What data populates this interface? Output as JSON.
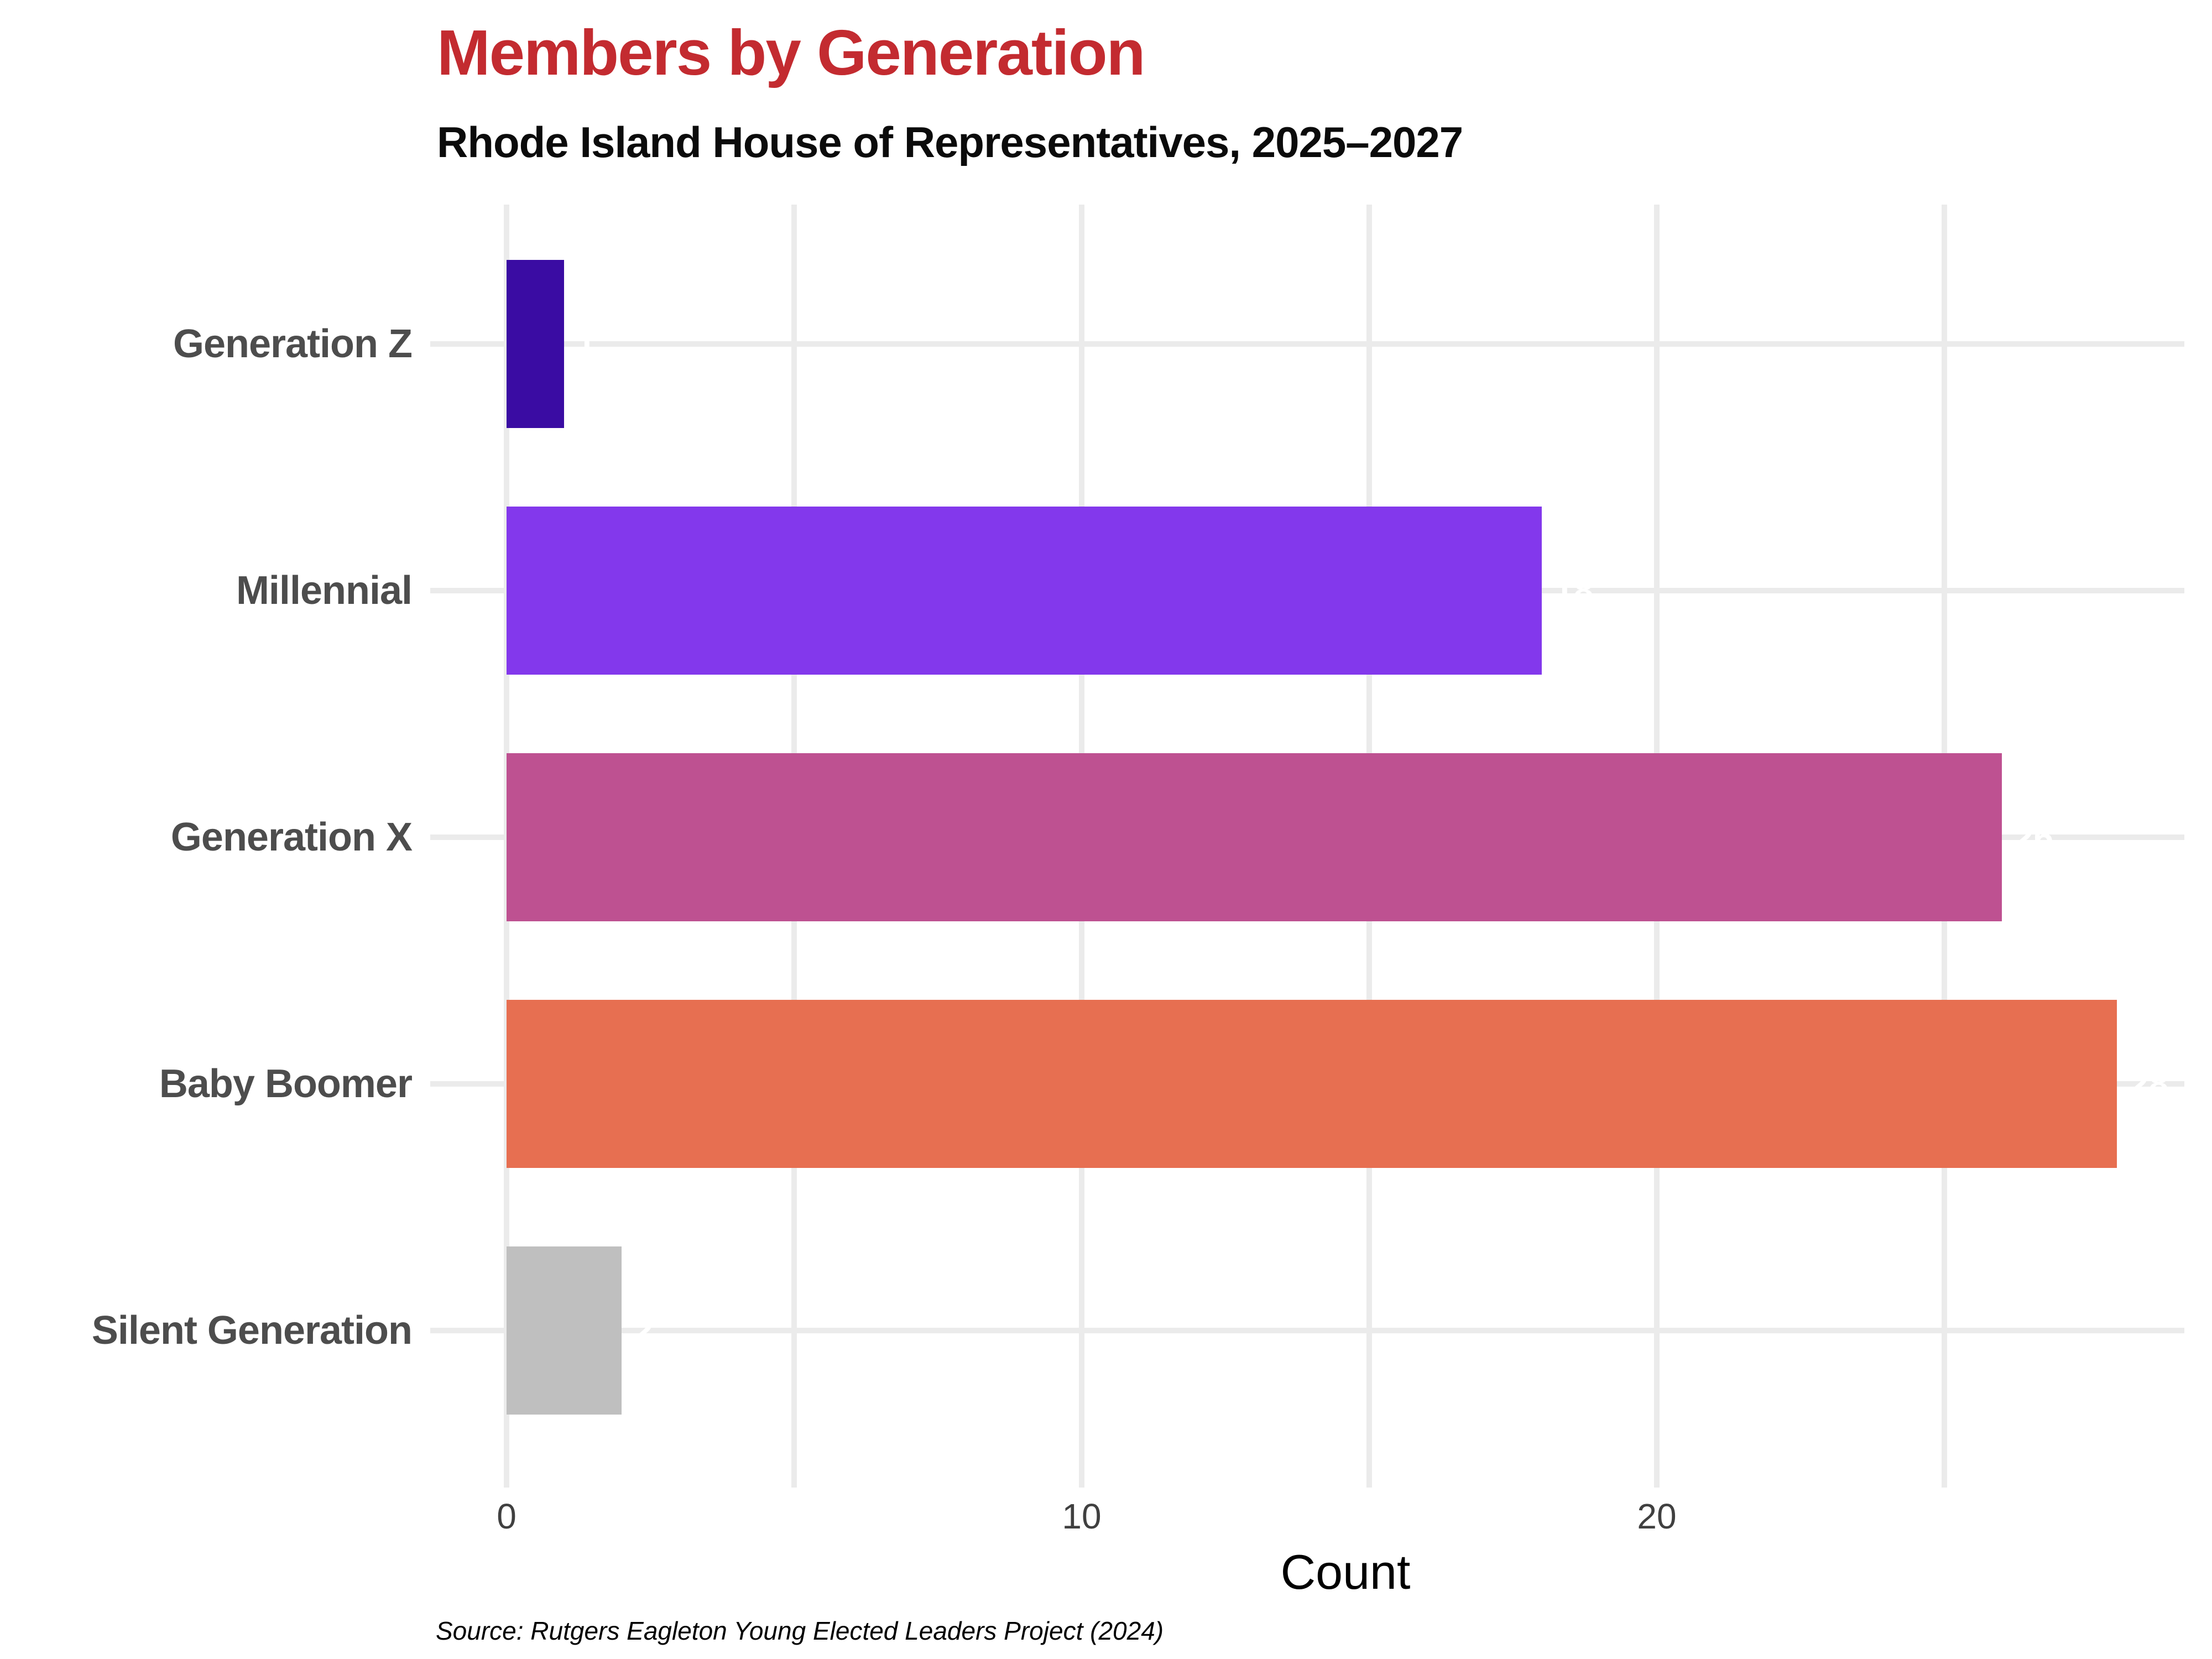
{
  "header": {
    "title": "Members by Generation",
    "subtitle": "Rhode Island House of Representatives, 2025–2027"
  },
  "footer": {
    "source": "Source: Rutgers Eagleton Young Elected Leaders Project (2024)"
  },
  "colors": {
    "title": "#C32B30",
    "subtitle": "#0B0B0B",
    "category_label": "#4D4D4D",
    "tick_label": "#404040",
    "gridline": "#EBEBEB",
    "value_label": "#FFFFFF",
    "background": "#FFFFFF"
  },
  "chart_data": {
    "type": "bar",
    "orientation": "horizontal",
    "title": "Members by Generation",
    "subtitle": "Rhode Island House of Representatives, 2025–2027",
    "xlabel": "Count",
    "categories": [
      "Generation Z",
      "Millennial",
      "Generation X",
      "Baby Boomer",
      "Silent Generation"
    ],
    "values": [
      1,
      18,
      26,
      28,
      2
    ],
    "value_labels": [
      "1",
      "18",
      "26",
      "28",
      "2"
    ],
    "bar_colors": [
      "#3A0CA3",
      "#8338EC",
      "#BE5191",
      "#E76F51",
      "#BFBFBF"
    ],
    "xlim": [
      0,
      29.2
    ],
    "x_ticks": [
      0,
      10,
      20
    ],
    "x_tick_labels": [
      "0",
      "10",
      "20"
    ],
    "x_gridlines": [
      0,
      5,
      10,
      15,
      20,
      25
    ],
    "grid": "on",
    "legend": "none",
    "ylabel": ""
  }
}
